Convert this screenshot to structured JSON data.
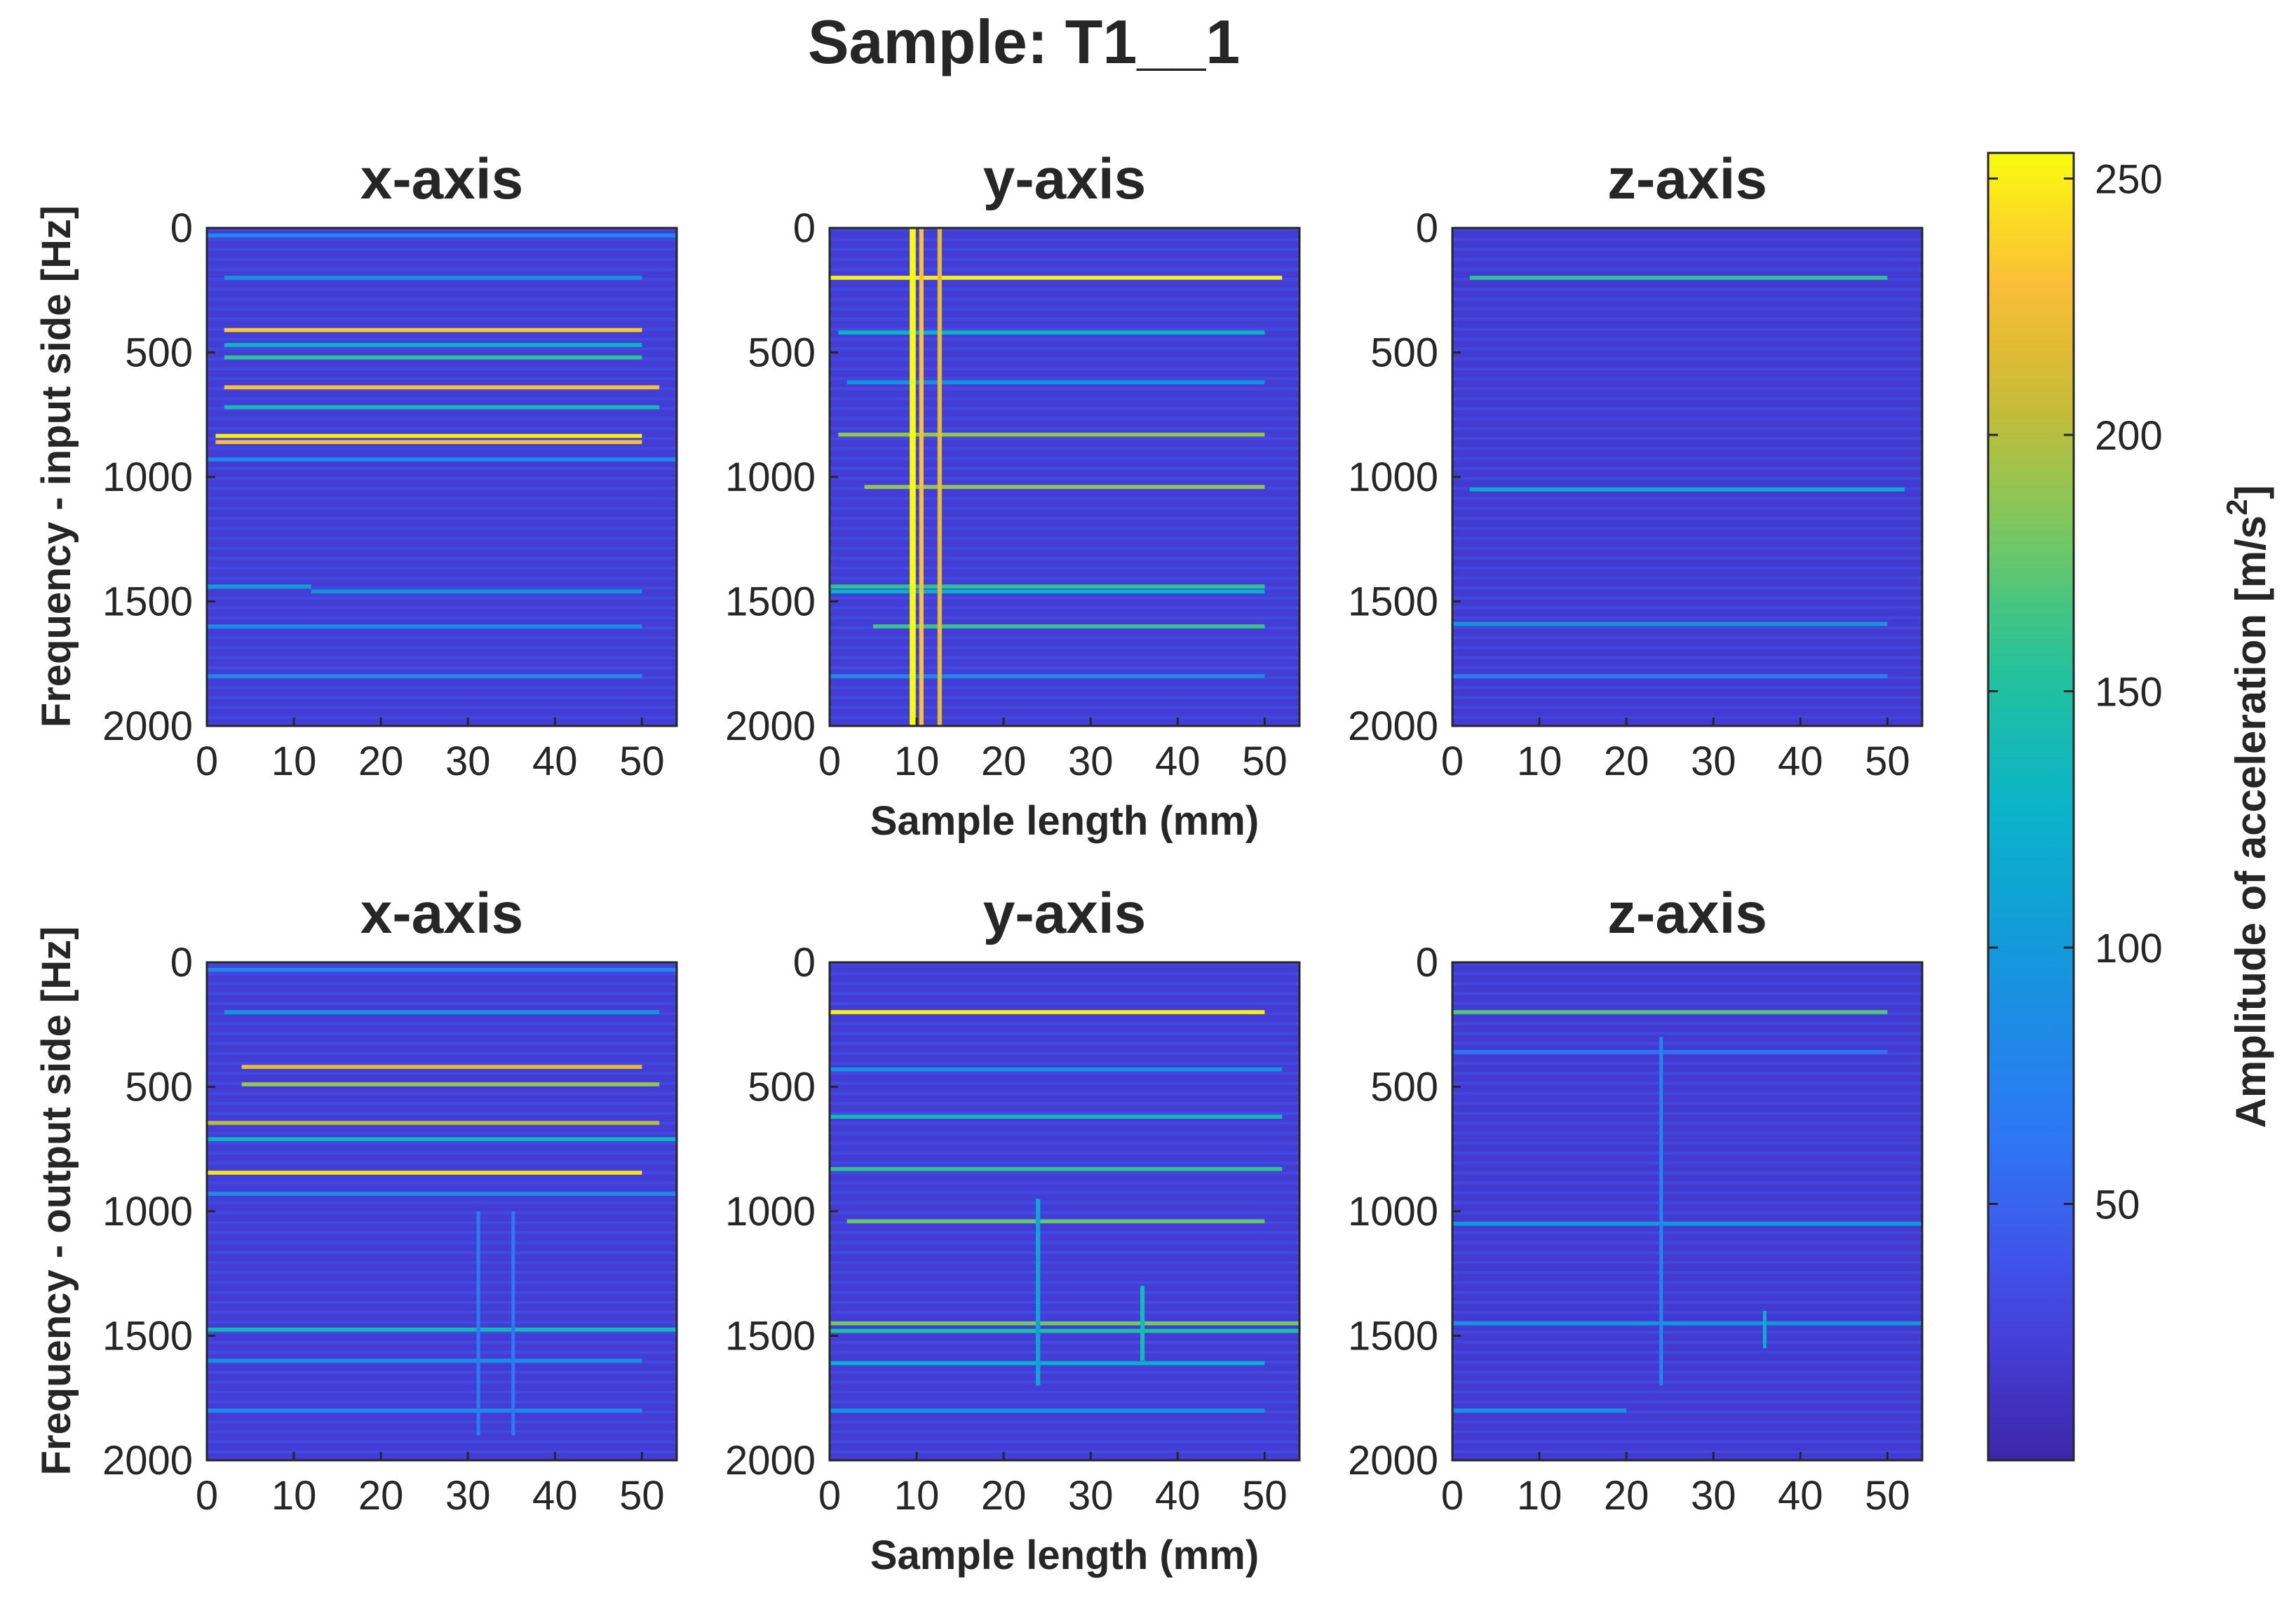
{
  "chart_data": {
    "type": "heatmap",
    "title": "Sample: T1__1",
    "colormap": "parula",
    "colorbar": {
      "label": "Amplitude of acceleration [m/s",
      "label_superscript": "2",
      "label_close": "]",
      "range": [
        0,
        255
      ],
      "ticks": [
        50,
        100,
        150,
        200,
        250
      ],
      "tick_labels": [
        "50",
        "100",
        "150",
        "200",
        "250"
      ],
      "location": "right"
    },
    "rows": [
      {
        "ylabel": "Frequency - input side [Hz]",
        "xlabel": "Sample length (mm)"
      },
      {
        "ylabel": "Frequency - output side [Hz]",
        "xlabel": "Sample length (mm)"
      }
    ],
    "xlim": [
      0,
      54
    ],
    "ylim": [
      0,
      2000
    ],
    "y_reversed": true,
    "xticks": [
      0,
      10,
      20,
      30,
      40,
      50
    ],
    "xtick_labels": [
      "0",
      "10",
      "20",
      "30",
      "40",
      "50"
    ],
    "yticks": [
      0,
      500,
      1000,
      1500,
      2000
    ],
    "ytick_labels": [
      "0",
      "500",
      "1000",
      "1500",
      "2000"
    ],
    "panels": [
      {
        "title": "x-axis",
        "row": 0,
        "col": 0,
        "base": 22,
        "bands": [
          [
            30,
            80,
            0,
            54
          ],
          [
            200,
            95,
            2,
            50
          ],
          [
            410,
            235,
            2,
            50
          ],
          [
            470,
            130,
            2,
            50
          ],
          [
            520,
            160,
            2,
            50
          ],
          [
            640,
            230,
            2,
            52
          ],
          [
            720,
            140,
            2,
            52
          ],
          [
            835,
            250,
            1,
            50
          ],
          [
            860,
            230,
            1,
            50
          ],
          [
            930,
            80,
            0,
            54
          ],
          [
            1440,
            105,
            0,
            12
          ],
          [
            1460,
            95,
            12,
            50
          ],
          [
            1600,
            85,
            0,
            50
          ],
          [
            1800,
            80,
            0,
            50
          ]
        ],
        "vlines": []
      },
      {
        "title": "y-axis",
        "row": 0,
        "col": 1,
        "base": 22,
        "bands": [
          [
            200,
            250,
            0,
            52
          ],
          [
            420,
            130,
            1,
            50
          ],
          [
            620,
            95,
            2,
            50
          ],
          [
            830,
            190,
            1,
            50
          ],
          [
            1040,
            190,
            4,
            50
          ],
          [
            1440,
            160,
            0,
            50
          ],
          [
            1460,
            120,
            0,
            50
          ],
          [
            1600,
            165,
            5,
            50
          ],
          [
            1800,
            80,
            0,
            50
          ]
        ],
        "vlines": [
          [
            9.2,
            9.9,
            0,
            2000,
            255
          ],
          [
            10.3,
            10.8,
            0,
            2000,
            230
          ],
          [
            12.4,
            12.9,
            0,
            2000,
            220
          ]
        ]
      },
      {
        "title": "z-axis",
        "row": 0,
        "col": 2,
        "base": 20,
        "bands": [
          [
            200,
            160,
            2,
            50
          ],
          [
            1050,
            115,
            2,
            52
          ],
          [
            1590,
            100,
            0,
            50
          ],
          [
            1800,
            70,
            0,
            50
          ]
        ],
        "vlines": []
      },
      {
        "title": "x-axis",
        "row": 1,
        "col": 0,
        "base": 22,
        "bands": [
          [
            30,
            80,
            0,
            54
          ],
          [
            200,
            95,
            2,
            52
          ],
          [
            420,
            220,
            4,
            50
          ],
          [
            490,
            190,
            4,
            52
          ],
          [
            645,
            200,
            0,
            52
          ],
          [
            710,
            130,
            0,
            54
          ],
          [
            845,
            245,
            0,
            50
          ],
          [
            930,
            80,
            0,
            54
          ],
          [
            1475,
            135,
            0,
            54
          ],
          [
            1600,
            85,
            0,
            50
          ],
          [
            1800,
            80,
            0,
            50
          ]
        ],
        "vlines": [
          [
            31,
            31.4,
            1000,
            1900,
            70
          ],
          [
            35,
            35.4,
            1000,
            1900,
            65
          ]
        ]
      },
      {
        "title": "y-axis",
        "row": 1,
        "col": 1,
        "base": 22,
        "bands": [
          [
            200,
            250,
            0,
            50
          ],
          [
            430,
            95,
            0,
            52
          ],
          [
            620,
            140,
            0,
            52
          ],
          [
            830,
            160,
            0,
            52
          ],
          [
            1040,
            175,
            2,
            50
          ],
          [
            1450,
            180,
            0,
            54
          ],
          [
            1480,
            150,
            0,
            54
          ],
          [
            1610,
            120,
            0,
            50
          ],
          [
            1800,
            95,
            0,
            50
          ]
        ],
        "vlines": [
          [
            23.7,
            24.2,
            950,
            1700,
            110
          ],
          [
            35.7,
            36.2,
            1300,
            1600,
            140
          ]
        ]
      },
      {
        "title": "z-axis",
        "row": 1,
        "col": 2,
        "base": 20,
        "bands": [
          [
            200,
            170,
            0,
            50
          ],
          [
            360,
            60,
            0,
            50
          ],
          [
            1050,
            100,
            0,
            54
          ],
          [
            1450,
            95,
            0,
            54
          ],
          [
            1800,
            90,
            0,
            20
          ]
        ],
        "vlines": [
          [
            23.8,
            24.2,
            300,
            1700,
            80
          ],
          [
            35.7,
            36.1,
            1400,
            1550,
            120
          ]
        ]
      }
    ]
  }
}
